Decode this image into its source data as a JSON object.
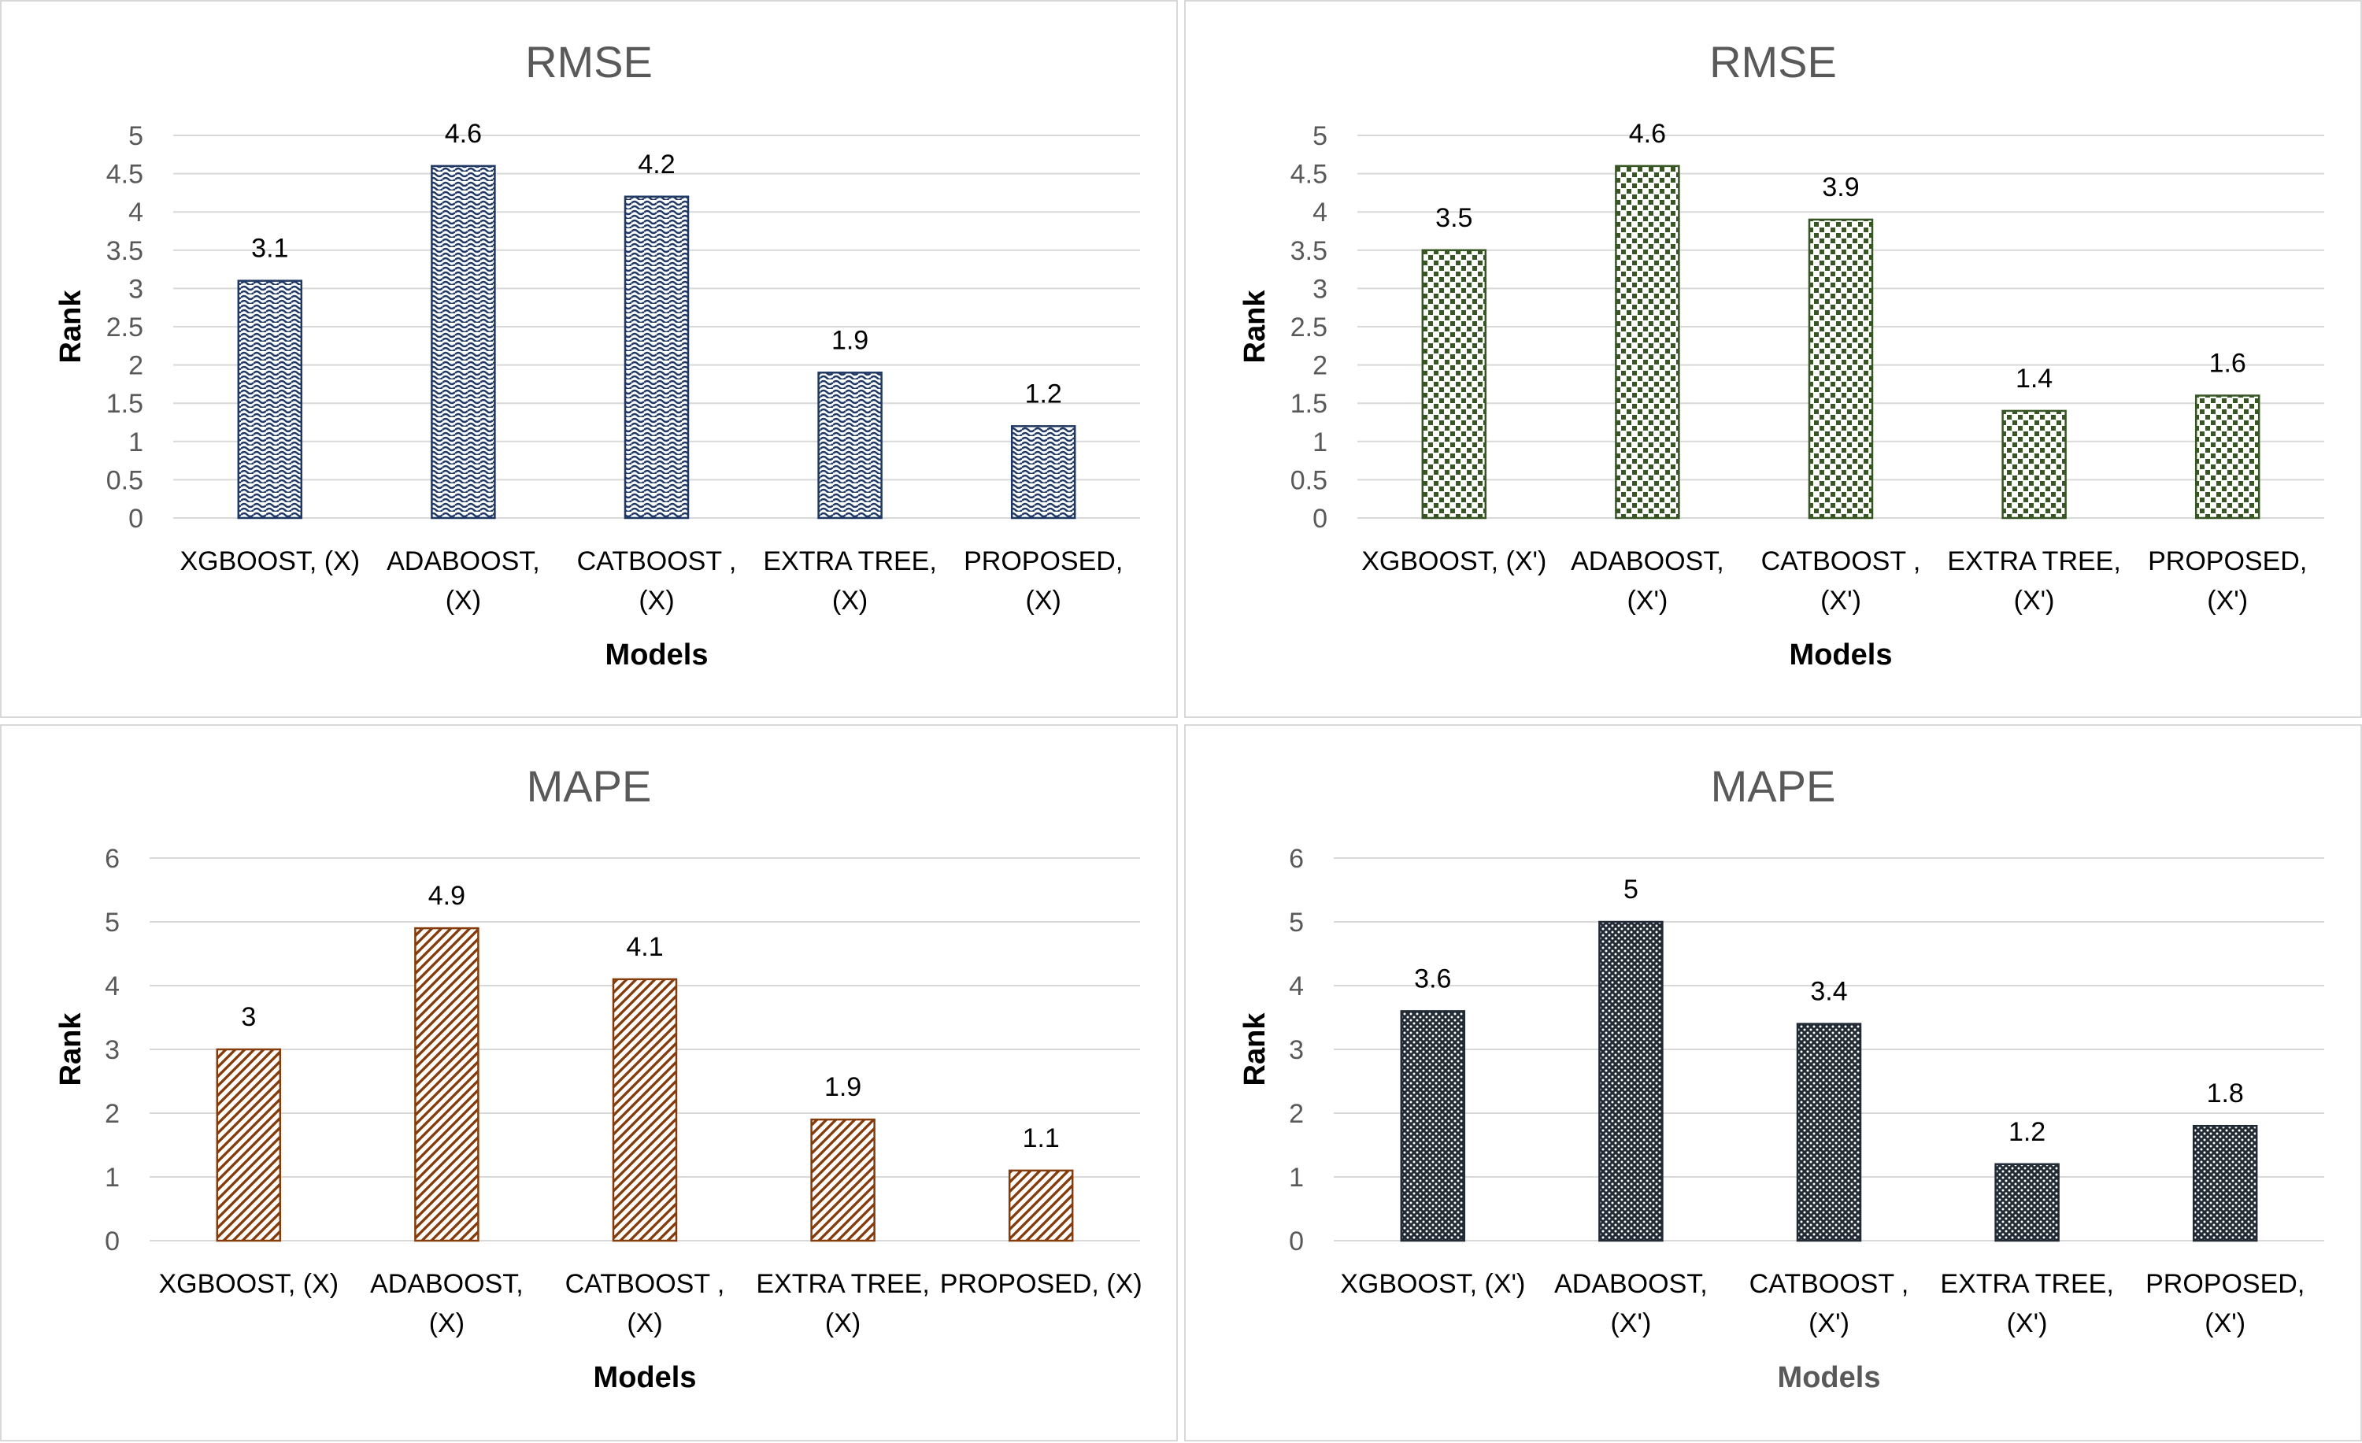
{
  "colors": {
    "gridline": "#d9d9d9",
    "title": "#595959",
    "tick": "#595959",
    "border": "#d9d9d9"
  },
  "chart_data": [
    {
      "type": "bar",
      "title": "RMSE",
      "xlabel": "Models",
      "ylabel": "Rank",
      "categories": [
        [
          "XGBOOST, (X)"
        ],
        [
          "ADABOOST,",
          "(X)"
        ],
        [
          "CATBOOST ,",
          "(X)"
        ],
        [
          "EXTRA TREE,",
          "(X)"
        ],
        [
          "PROPOSED,",
          "(X)"
        ]
      ],
      "values": [
        3.1,
        4.6,
        4.2,
        1.9,
        1.2
      ],
      "ylim": [
        0,
        5
      ],
      "yticks": [
        0,
        0.5,
        1,
        1.5,
        2,
        2.5,
        3,
        3.5,
        4,
        4.5,
        5
      ],
      "grid": true,
      "legend": "none",
      "pattern": "wave",
      "bar_color": "#1f3864"
    },
    {
      "type": "bar",
      "title": "RMSE",
      "xlabel": "Models",
      "ylabel": "Rank",
      "categories": [
        [
          "XGBOOST, (X')"
        ],
        [
          "ADABOOST,",
          "(X')"
        ],
        [
          "CATBOOST ,",
          "(X')"
        ],
        [
          "EXTRA TREE,",
          "(X')"
        ],
        [
          "PROPOSED,",
          "(X')"
        ]
      ],
      "values": [
        3.5,
        4.6,
        3.9,
        1.4,
        1.6
      ],
      "ylim": [
        0,
        5
      ],
      "yticks": [
        0,
        0.5,
        1,
        1.5,
        2,
        2.5,
        3,
        3.5,
        4,
        4.5,
        5
      ],
      "grid": true,
      "legend": "none",
      "pattern": "checker",
      "bar_color": "#375623"
    },
    {
      "type": "bar",
      "title": "MAPE",
      "xlabel": "Models",
      "ylabel": "Rank",
      "categories": [
        [
          "XGBOOST, (X)"
        ],
        [
          "ADABOOST,",
          "(X)"
        ],
        [
          "CATBOOST ,",
          "(X)"
        ],
        [
          "EXTRA TREE,",
          "(X)"
        ],
        [
          "PROPOSED, (X)"
        ]
      ],
      "values": [
        3,
        4.9,
        4.1,
        1.9,
        1.1
      ],
      "ylim": [
        0,
        6
      ],
      "yticks": [
        0,
        1,
        2,
        3,
        4,
        5,
        6
      ],
      "grid": true,
      "legend": "none",
      "pattern": "diagonal",
      "bar_color": "#843c0c"
    },
    {
      "type": "bar",
      "title": "MAPE",
      "xlabel": "Models",
      "ylabel": "Rank",
      "categories": [
        [
          "XGBOOST, (X')"
        ],
        [
          "ADABOOST,",
          "(X')"
        ],
        [
          "CATBOOST ,",
          "(X')"
        ],
        [
          "EXTRA TREE,",
          "(X')"
        ],
        [
          "PROPOSED,",
          "(X')"
        ]
      ],
      "values": [
        3.6,
        5,
        3.4,
        1.2,
        1.8
      ],
      "ylim": [
        0,
        6
      ],
      "yticks": [
        0,
        1,
        2,
        3,
        4,
        5,
        6
      ],
      "grid": true,
      "legend": "none",
      "pattern": "dots",
      "bar_color": "#222a35"
    }
  ]
}
